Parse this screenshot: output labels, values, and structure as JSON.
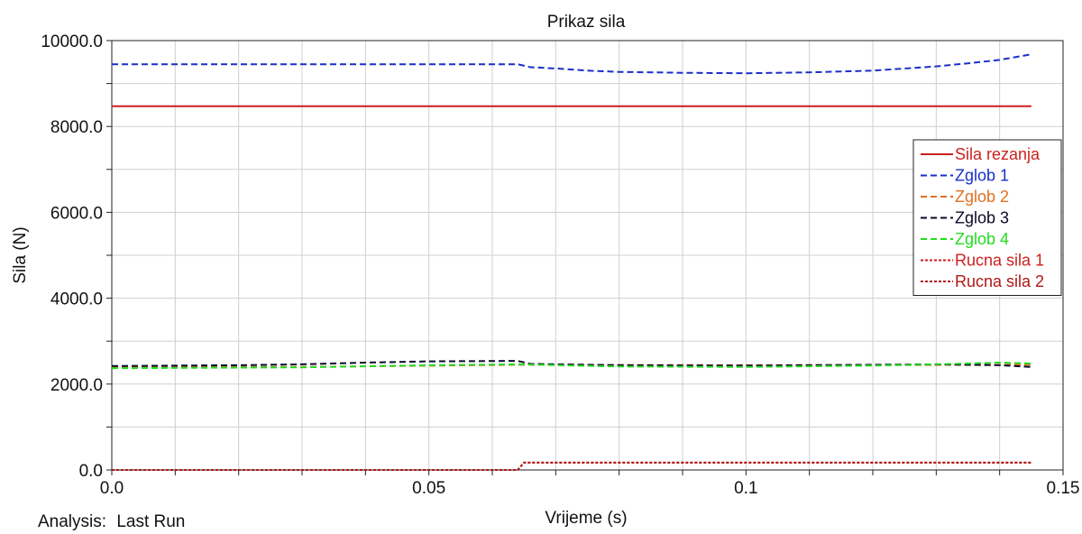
{
  "chart_data": {
    "type": "line",
    "title": "Prikaz sila",
    "xlabel": "Vrijeme (s)",
    "ylabel": "Sila (N)",
    "xlim": [
      0,
      0.15
    ],
    "ylim": [
      0,
      10000
    ],
    "x_ticks": [
      0,
      0.05,
      0.1,
      0.15
    ],
    "x_tick_labels": [
      "0.0",
      "0.05",
      "0.1",
      "0.15"
    ],
    "y_ticks": [
      0,
      2000,
      4000,
      6000,
      8000,
      10000
    ],
    "y_tick_labels": [
      "0.0",
      "2000.0",
      "4000.0",
      "6000.0",
      "8000.0",
      "10000.0"
    ],
    "grid": true,
    "legend_position": "right",
    "series": [
      {
        "name": "Sila rezanja",
        "color": "#cc1f1f",
        "dash": "solid",
        "points": [
          [
            0,
            8470
          ],
          [
            0.145,
            8470
          ]
        ]
      },
      {
        "name": "Zglob 1",
        "color": "#1a2fc8",
        "dash": "dashed",
        "points": [
          [
            0,
            9450
          ],
          [
            0.02,
            9450
          ],
          [
            0.064,
            9450
          ],
          [
            0.066,
            9380
          ],
          [
            0.07,
            9350
          ],
          [
            0.075,
            9300
          ],
          [
            0.08,
            9270
          ],
          [
            0.09,
            9250
          ],
          [
            0.1,
            9240
          ],
          [
            0.11,
            9260
          ],
          [
            0.12,
            9300
          ],
          [
            0.13,
            9400
          ],
          [
            0.135,
            9470
          ],
          [
            0.14,
            9550
          ],
          [
            0.145,
            9680
          ]
        ]
      },
      {
        "name": "Zglob 2",
        "color": "#e07020",
        "dash": "dashed",
        "points": [
          [
            0,
            2390
          ],
          [
            0.03,
            2400
          ],
          [
            0.064,
            2450
          ],
          [
            0.1,
            2440
          ],
          [
            0.145,
            2450
          ]
        ]
      },
      {
        "name": "Zglob 3",
        "color": "#0a0a2a",
        "dash": "dashed",
        "points": [
          [
            0,
            2420
          ],
          [
            0.02,
            2440
          ],
          [
            0.03,
            2460
          ],
          [
            0.04,
            2500
          ],
          [
            0.05,
            2530
          ],
          [
            0.064,
            2540
          ],
          [
            0.066,
            2470
          ],
          [
            0.08,
            2440
          ],
          [
            0.1,
            2430
          ],
          [
            0.12,
            2450
          ],
          [
            0.13,
            2460
          ],
          [
            0.14,
            2440
          ],
          [
            0.145,
            2400
          ]
        ]
      },
      {
        "name": "Zglob 4",
        "color": "#22dd22",
        "dash": "dashed",
        "points": [
          [
            0,
            2370
          ],
          [
            0.03,
            2390
          ],
          [
            0.05,
            2440
          ],
          [
            0.064,
            2460
          ],
          [
            0.08,
            2410
          ],
          [
            0.1,
            2400
          ],
          [
            0.12,
            2430
          ],
          [
            0.13,
            2460
          ],
          [
            0.14,
            2500
          ],
          [
            0.145,
            2480
          ]
        ]
      },
      {
        "name": "Rucna sila 1",
        "color": "#cc1f1f",
        "dash": "dotted",
        "points": [
          [
            0,
            0
          ],
          [
            0.064,
            0
          ],
          [
            0.065,
            170
          ],
          [
            0.145,
            170
          ]
        ]
      },
      {
        "name": "Rucna sila 2",
        "color": "#b01818",
        "dash": "dotted",
        "points": [
          [
            0,
            0
          ],
          [
            0.064,
            0
          ],
          [
            0.065,
            170
          ],
          [
            0.145,
            170
          ]
        ]
      }
    ]
  },
  "footer": {
    "analysis_label": "Analysis:",
    "analysis_value": "Last  Run"
  }
}
